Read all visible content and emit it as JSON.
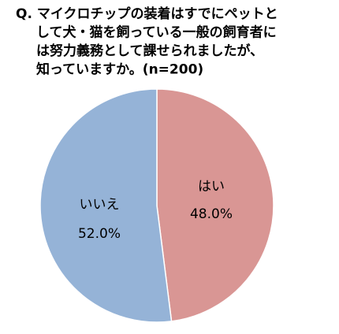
{
  "chart_data": {
    "type": "pie",
    "title": [
      "Q. マイクロチップの装着はすでにペットと",
      "して犬・猫を飼っている一般の飼育者に",
      "は努力義務として課せられましたが、",
      "知っていますか。(n=200)"
    ],
    "categories": [
      "はい",
      "いいえ"
    ],
    "values": [
      48.0,
      52.0
    ],
    "value_labels": [
      "48.0%",
      "52.0%"
    ],
    "colors": [
      "#d99694",
      "#95b3d7"
    ]
  }
}
